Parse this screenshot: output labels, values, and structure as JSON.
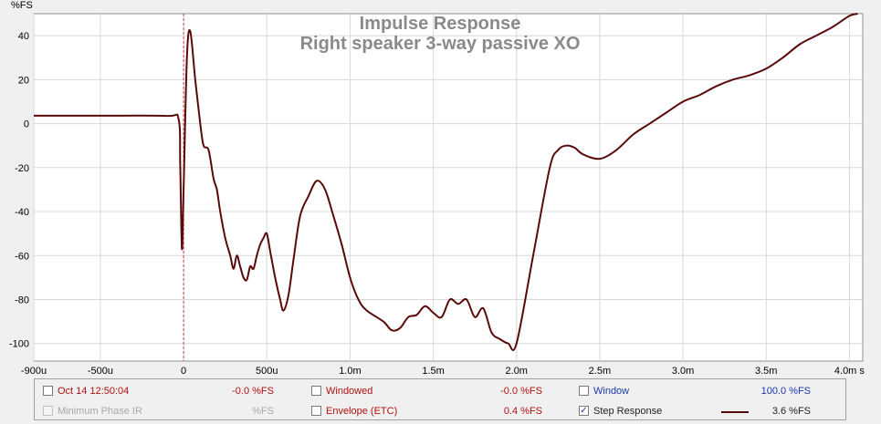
{
  "chart_data": {
    "type": "line",
    "title": "Impulse Response",
    "subtitle": "Right speaker 3-way passive XO",
    "ylabel": "%FS",
    "xlabel": "",
    "xlim": [
      -0.0009,
      0.00408
    ],
    "ylim": [
      -108,
      50
    ],
    "y_ticks": [
      40,
      20,
      0,
      -20,
      -40,
      -60,
      -80,
      -100
    ],
    "y_tick_labels": [
      "40",
      "20",
      "0",
      "-20",
      "-40",
      "-60",
      "-80",
      "-100"
    ],
    "x_ticks": [
      -0.0009,
      -0.0005,
      0,
      0.0005,
      0.001,
      0.0015,
      0.002,
      0.0025,
      0.003,
      0.0035,
      0.004
    ],
    "x_tick_labels": [
      "-900u",
      "-500u",
      "0",
      "500u",
      "1.0m",
      "1.5m",
      "2.0m",
      "2.5m",
      "3.0m",
      "3.5m",
      "4.0m s"
    ],
    "grid": true,
    "line_color": "#5a0a0a",
    "marker_color": "#d04040",
    "markers": [
      0
    ],
    "series": [
      {
        "name": "Step Response",
        "x": [
          -0.0009,
          -0.0005,
          -0.0001,
          -3e-05,
          -2e-05,
          -1e-05,
          0,
          2e-05,
          4e-05,
          7e-05,
          0.0001,
          0.00012,
          0.00015,
          0.00018,
          0.0002,
          0.00022,
          0.00025,
          0.00028,
          0.0003,
          0.00032,
          0.00034,
          0.00036,
          0.00038,
          0.0004,
          0.00042,
          0.00044,
          0.00046,
          0.00048,
          0.0005,
          0.00052,
          0.00055,
          0.00058,
          0.0006,
          0.00063,
          0.00066,
          0.0007,
          0.00075,
          0.0008,
          0.00085,
          0.0009,
          0.00095,
          0.001,
          0.00105,
          0.0011,
          0.0012,
          0.00125,
          0.0013,
          0.00135,
          0.0014,
          0.00145,
          0.0015,
          0.00155,
          0.0016,
          0.00165,
          0.0017,
          0.00175,
          0.0018,
          0.00185,
          0.0019,
          0.00195,
          0.002,
          0.0021,
          0.0022,
          0.00225,
          0.0023,
          0.00235,
          0.0024,
          0.0025,
          0.0026,
          0.0027,
          0.0028,
          0.0029,
          0.003,
          0.0031,
          0.0032,
          0.0033,
          0.0034,
          0.0035,
          0.0036,
          0.0037,
          0.0038,
          0.0039,
          0.004,
          0.00405
        ],
        "y": [
          3.6,
          3.6,
          3.5,
          2,
          -20,
          -57,
          -30,
          30,
          42,
          20,
          0,
          -10,
          -12,
          -25,
          -30,
          -40,
          -52,
          -60,
          -66,
          -60,
          -65,
          -70,
          -71,
          -65,
          -66,
          -60,
          -55,
          -52,
          -50,
          -58,
          -70,
          -80,
          -85,
          -78,
          -62,
          -42,
          -33,
          -26,
          -30,
          -42,
          -55,
          -70,
          -80,
          -85,
          -90,
          -94,
          -93,
          -88,
          -87,
          -83,
          -86,
          -88,
          -80,
          -82,
          -80,
          -88,
          -84,
          -95,
          -98,
          -100,
          -100,
          -60,
          -20,
          -12,
          -10,
          -11,
          -14,
          -16,
          -12,
          -5,
          0,
          5,
          10,
          13,
          17,
          20,
          22,
          25,
          30,
          36,
          40,
          44,
          49,
          50
        ]
      }
    ]
  },
  "legend": {
    "row1": [
      {
        "checked": false,
        "label": "Oct 14 12:50:04",
        "value": "-0.0 %FS",
        "color": "#b01010"
      },
      {
        "checked": false,
        "label": "Windowed",
        "value": "-0.0 %FS",
        "color": "#b01010"
      },
      {
        "checked": false,
        "label": "Window",
        "value": "100.0 %FS",
        "color": "#1a3ab0"
      }
    ],
    "row2": [
      {
        "checked": false,
        "label": "Minimum Phase IR",
        "value": "%FS",
        "color": "#a8a8a8"
      },
      {
        "checked": false,
        "label": "Envelope (ETC)",
        "value": "0.4 %FS",
        "color": "#b01010"
      },
      {
        "checked": true,
        "label": "Step Response",
        "value": "3.6 %FS",
        "color": "#222222"
      }
    ],
    "check_glyph": "✓"
  }
}
